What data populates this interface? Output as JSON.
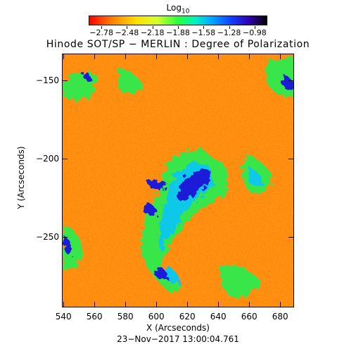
{
  "colorbar": {
    "title": "Log",
    "title_sub": "10",
    "tick_labels": [
      "−2.78",
      "−2.48",
      "−2.18",
      "−1.88",
      "−1.58",
      "−1.28",
      "−0.98"
    ]
  },
  "plot": {
    "title": "Hinode SOT/SP − MERLIN : Degree of Polarization",
    "xlabel": "X (Arcseconds)",
    "ylabel": "Y (Arcseconds)",
    "timestamp": "23−Nov−2017 13:00:04.761",
    "x_tick_labels": [
      "540",
      "560",
      "580",
      "600",
      "620",
      "640",
      "660",
      "680"
    ],
    "y_tick_labels": [
      "−150",
      "−200",
      "−250"
    ],
    "x_range": [
      539,
      689
    ],
    "y_range": [
      -295,
      -133
    ],
    "colorscale_range": [
      -2.78,
      -0.98
    ]
  }
}
